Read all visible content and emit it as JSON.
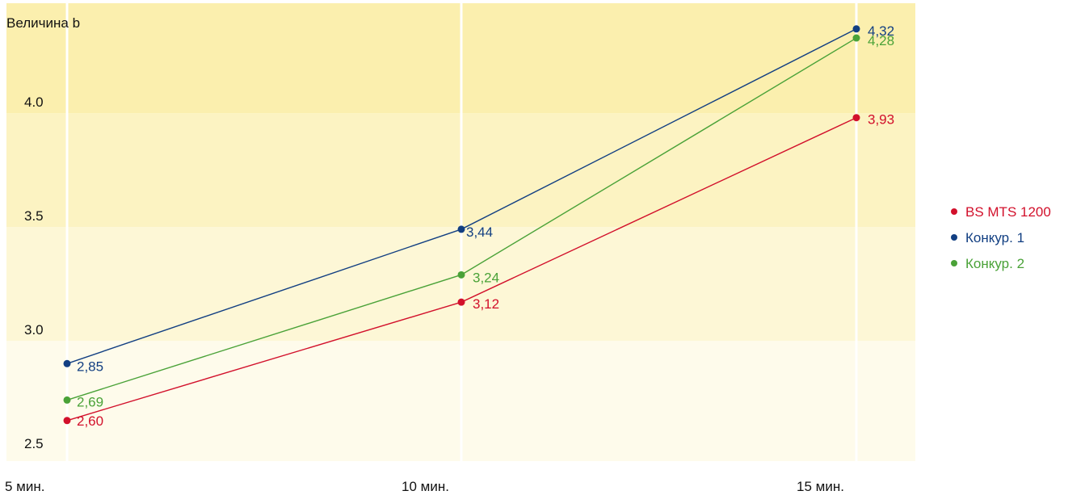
{
  "chart_data": {
    "type": "line",
    "title": "",
    "ylabel": "Величина b",
    "xlabel": "",
    "categories": [
      "5 мин.",
      "10 мин.",
      "15 мин."
    ],
    "y_ticks": [
      "2.5",
      "3.0",
      "3.5",
      "4.0"
    ],
    "ylim": [
      2.5,
      4.5
    ],
    "grid": "vertical lines, horizontal shaded bands",
    "legend_position": "right",
    "band_colors": [
      "#fefbeb",
      "#fdf7d6",
      "#fcf3c2",
      "#fbefae"
    ],
    "series": [
      {
        "name": "BS MTS 1200",
        "color": "#d2102b",
        "values": [
          2.6,
          3.12,
          3.93
        ],
        "labels": [
          "2,60",
          "3,12",
          "3,93"
        ]
      },
      {
        "name": "Конкур. 1",
        "color": "#123f82",
        "values": [
          2.85,
          3.44,
          4.32
        ],
        "labels": [
          "2,85",
          "3,44",
          "4,32"
        ]
      },
      {
        "name": "Конкур. 2",
        "color": "#4aa238",
        "values": [
          2.69,
          3.24,
          4.28
        ],
        "labels": [
          "2,69",
          "3,24",
          "4,28"
        ]
      }
    ]
  }
}
